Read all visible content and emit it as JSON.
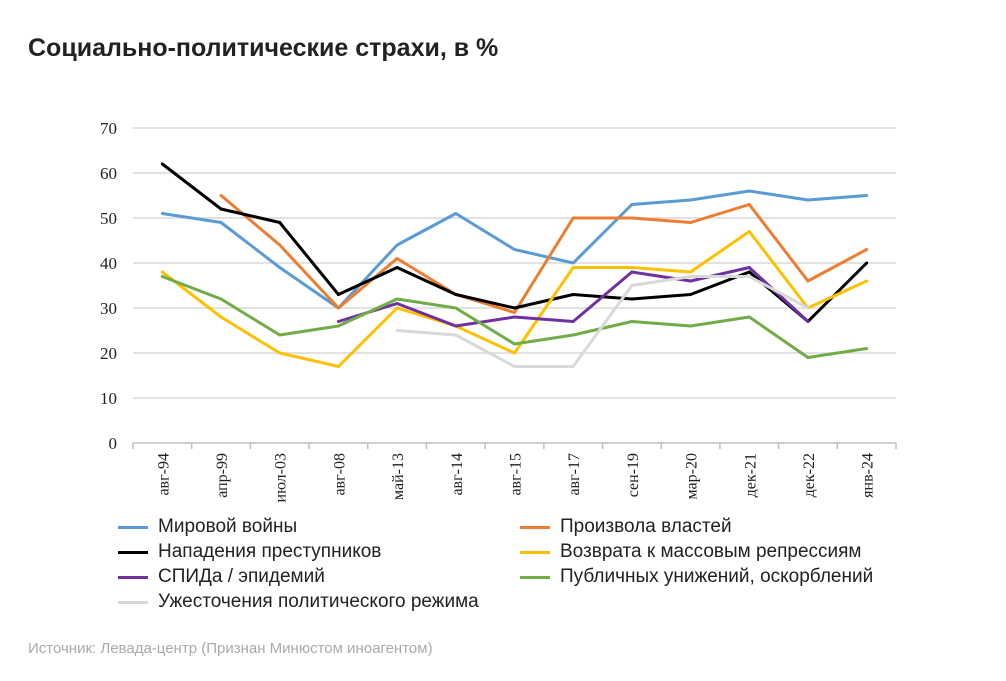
{
  "title": "Социально-политические страхи, в %",
  "source": "Источник: Левада-центр (Признан Минюстом иноагентом)",
  "chart_data": {
    "type": "line",
    "title": "Социально-политические страхи, в %",
    "categories": [
      "авг-94",
      "апр-99",
      "июл-03",
      "авг-08",
      "май-13",
      "авг-14",
      "авг-15",
      "авг-17",
      "сен-19",
      "мар-20",
      "дек-21",
      "дек-22",
      "янв-24"
    ],
    "ylim": [
      0,
      70
    ],
    "yticks": [
      0,
      10,
      20,
      30,
      40,
      50,
      60,
      70
    ],
    "grid": true,
    "legend_position": "bottom",
    "series": [
      {
        "name": "Мировой войны",
        "color": "#5b9bd5",
        "values": [
          51,
          49,
          39,
          30,
          44,
          51,
          43,
          40,
          53,
          54,
          56,
          54,
          55
        ]
      },
      {
        "name": "Произвола властей",
        "color": "#ed7d31",
        "values": [
          null,
          55,
          44,
          30,
          41,
          33,
          29,
          50,
          50,
          49,
          53,
          36,
          43
        ]
      },
      {
        "name": "Нападения преступников",
        "color": "#000000",
        "values": [
          62,
          52,
          49,
          33,
          39,
          33,
          30,
          33,
          32,
          33,
          38,
          27,
          40
        ]
      },
      {
        "name": "Возврата к массовым репрессиям",
        "color": "#ffc000",
        "values": [
          38,
          28,
          20,
          17,
          30,
          26,
          20,
          39,
          39,
          38,
          47,
          30,
          36
        ]
      },
      {
        "name": "СПИДа / эпидемий",
        "color": "#7030a0",
        "values": [
          null,
          null,
          null,
          27,
          31,
          26,
          28,
          27,
          38,
          36,
          39,
          27,
          null
        ]
      },
      {
        "name": "Публичных унижений, оскорблений",
        "color": "#70ad47",
        "values": [
          37,
          32,
          24,
          26,
          32,
          30,
          22,
          24,
          27,
          26,
          28,
          19,
          21
        ]
      },
      {
        "name": "Ужесточения политического режима",
        "color": "#d9d9d9",
        "values": [
          null,
          null,
          null,
          null,
          25,
          24,
          17,
          17,
          35,
          37,
          37,
          30,
          null
        ]
      }
    ]
  }
}
